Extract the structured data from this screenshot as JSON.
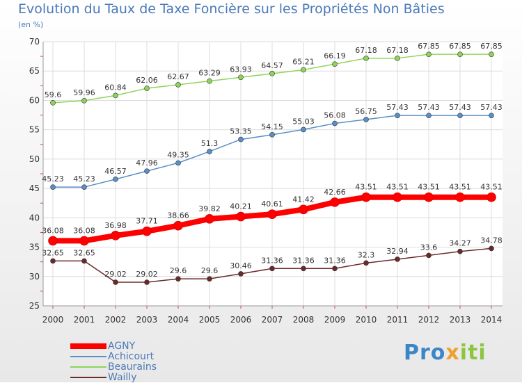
{
  "title": "Evolution du Taux de Taxe Foncière sur les Propriétés Non Bâties",
  "unit_label": "(en %)",
  "logo_text": "Proxiti",
  "chart_data": {
    "type": "line",
    "title": "Evolution du Taux de Taxe Foncière sur les Propriétés Non Bâties",
    "ylabel": "(en %)",
    "xlabel": "",
    "ylim": [
      25,
      70
    ],
    "yticks": [
      25,
      30,
      35,
      40,
      45,
      50,
      55,
      60,
      65,
      70
    ],
    "categories": [
      "2000",
      "2001",
      "2002",
      "2003",
      "2004",
      "2005",
      "2006",
      "2007",
      "2008",
      "2009",
      "2010",
      "2011",
      "2012",
      "2013",
      "2014"
    ],
    "grid": true,
    "legend_position": "bottom-left",
    "series": [
      {
        "name": "AGNY",
        "color": "#ff0000",
        "emphasis": true,
        "values": [
          36.08,
          36.08,
          36.98,
          37.71,
          38.66,
          39.82,
          40.21,
          40.61,
          41.42,
          42.66,
          43.51,
          43.51,
          43.51,
          43.51,
          43.51
        ],
        "labels": [
          "36.08",
          "36.08",
          "36.98",
          "37.71",
          "38.66",
          "39.82",
          "40.21",
          "40.61",
          "41.42",
          "42.66",
          "43.51",
          "43.51",
          "43.51",
          "43.51",
          "43.51"
        ]
      },
      {
        "name": "Achicourt",
        "color": "#5a8fc8",
        "emphasis": false,
        "values": [
          45.23,
          45.23,
          46.57,
          47.96,
          49.35,
          51.3,
          53.35,
          54.15,
          55.03,
          56.08,
          56.75,
          57.43,
          57.43,
          57.43,
          57.43
        ],
        "labels": [
          "45.23",
          "45.23",
          "46.57",
          "47.96",
          "49.35",
          "51.3",
          "53.35",
          "54.15",
          "55.03",
          "56.08",
          "56.75",
          "57.43",
          "57.43",
          "57.43",
          "57.43"
        ]
      },
      {
        "name": "Beaurains",
        "color": "#8fd45a",
        "emphasis": false,
        "values": [
          59.6,
          59.96,
          60.84,
          62.06,
          62.67,
          63.29,
          63.93,
          64.57,
          65.21,
          66.19,
          67.18,
          67.18,
          67.85,
          67.85,
          67.85
        ],
        "labels": [
          "59.6",
          "59.96",
          "60.84",
          "62.06",
          "62.67",
          "63.29",
          "63.93",
          "64.57",
          "65.21",
          "66.19",
          "67.18",
          "67.18",
          "67.85",
          "67.85",
          "67.85"
        ]
      },
      {
        "name": "Wailly",
        "color": "#6b2a2a",
        "emphasis": false,
        "values": [
          32.65,
          32.65,
          29.02,
          29.02,
          29.6,
          29.6,
          30.46,
          31.36,
          31.36,
          31.36,
          32.3,
          32.94,
          33.6,
          34.27,
          34.78
        ],
        "labels": [
          "32.65",
          "32.65",
          "29.02",
          "29.02",
          "29.6",
          "29.6",
          "30.46",
          "31.36",
          "31.36",
          "31.36",
          "32.3",
          "32.94",
          "33.6",
          "34.27",
          "34.78"
        ]
      }
    ]
  }
}
